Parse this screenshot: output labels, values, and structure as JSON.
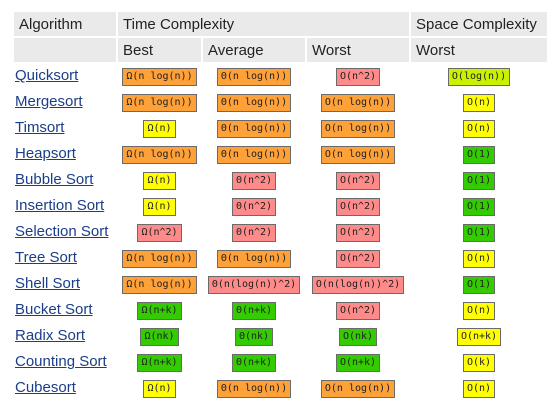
{
  "headers": {
    "algorithm": "Algorithm",
    "time_complexity": "Time Complexity",
    "space_complexity": "Space Complexity",
    "best": "Best",
    "average": "Average",
    "worst": "Worst",
    "space_worst": "Worst"
  },
  "colors": {
    "orange": "#fea138",
    "red": "#ff8a8a",
    "yellow": "#ffff00",
    "green": "#33cc00",
    "lime": "#cbf000",
    "link": "#1a3e88",
    "header_bg": "#eaeaea"
  },
  "rows": [
    {
      "name": "Quicksort",
      "best": {
        "text": "Ω(n log(n))",
        "color": "orange"
      },
      "average": {
        "text": "Θ(n log(n))",
        "color": "orange"
      },
      "worst": {
        "text": "O(n^2)",
        "color": "red"
      },
      "space": {
        "text": "O(log(n))",
        "color": "lime"
      }
    },
    {
      "name": "Mergesort",
      "best": {
        "text": "Ω(n log(n))",
        "color": "orange"
      },
      "average": {
        "text": "Θ(n log(n))",
        "color": "orange"
      },
      "worst": {
        "text": "O(n log(n))",
        "color": "orange"
      },
      "space": {
        "text": "O(n)",
        "color": "yellow"
      }
    },
    {
      "name": "Timsort",
      "best": {
        "text": "Ω(n)",
        "color": "yellow"
      },
      "average": {
        "text": "Θ(n log(n))",
        "color": "orange"
      },
      "worst": {
        "text": "O(n log(n))",
        "color": "orange"
      },
      "space": {
        "text": "O(n)",
        "color": "yellow"
      }
    },
    {
      "name": "Heapsort",
      "best": {
        "text": "Ω(n log(n))",
        "color": "orange"
      },
      "average": {
        "text": "Θ(n log(n))",
        "color": "orange"
      },
      "worst": {
        "text": "O(n log(n))",
        "color": "orange"
      },
      "space": {
        "text": "O(1)",
        "color": "green"
      }
    },
    {
      "name": "Bubble Sort",
      "best": {
        "text": "Ω(n)",
        "color": "yellow"
      },
      "average": {
        "text": "Θ(n^2)",
        "color": "red"
      },
      "worst": {
        "text": "O(n^2)",
        "color": "red"
      },
      "space": {
        "text": "O(1)",
        "color": "green"
      }
    },
    {
      "name": "Insertion Sort",
      "best": {
        "text": "Ω(n)",
        "color": "yellow"
      },
      "average": {
        "text": "Θ(n^2)",
        "color": "red"
      },
      "worst": {
        "text": "O(n^2)",
        "color": "red"
      },
      "space": {
        "text": "O(1)",
        "color": "green"
      }
    },
    {
      "name": "Selection Sort",
      "best": {
        "text": "Ω(n^2)",
        "color": "red"
      },
      "average": {
        "text": "Θ(n^2)",
        "color": "red"
      },
      "worst": {
        "text": "O(n^2)",
        "color": "red"
      },
      "space": {
        "text": "O(1)",
        "color": "green"
      }
    },
    {
      "name": "Tree Sort",
      "best": {
        "text": "Ω(n log(n))",
        "color": "orange"
      },
      "average": {
        "text": "Θ(n log(n))",
        "color": "orange"
      },
      "worst": {
        "text": "O(n^2)",
        "color": "red"
      },
      "space": {
        "text": "O(n)",
        "color": "yellow"
      }
    },
    {
      "name": "Shell Sort",
      "best": {
        "text": "Ω(n log(n))",
        "color": "orange"
      },
      "average": {
        "text": "Θ(n(log(n))^2)",
        "color": "red"
      },
      "worst": {
        "text": "O(n(log(n))^2)",
        "color": "red"
      },
      "space": {
        "text": "O(1)",
        "color": "green"
      }
    },
    {
      "name": "Bucket Sort",
      "best": {
        "text": "Ω(n+k)",
        "color": "green"
      },
      "average": {
        "text": "Θ(n+k)",
        "color": "green"
      },
      "worst": {
        "text": "O(n^2)",
        "color": "red"
      },
      "space": {
        "text": "O(n)",
        "color": "yellow"
      }
    },
    {
      "name": "Radix Sort",
      "best": {
        "text": "Ω(nk)",
        "color": "green"
      },
      "average": {
        "text": "Θ(nk)",
        "color": "green"
      },
      "worst": {
        "text": "O(nk)",
        "color": "green"
      },
      "space": {
        "text": "O(n+k)",
        "color": "yellow"
      }
    },
    {
      "name": "Counting Sort",
      "best": {
        "text": "Ω(n+k)",
        "color": "green"
      },
      "average": {
        "text": "Θ(n+k)",
        "color": "green"
      },
      "worst": {
        "text": "O(n+k)",
        "color": "green"
      },
      "space": {
        "text": "O(k)",
        "color": "yellow"
      }
    },
    {
      "name": "Cubesort",
      "best": {
        "text": "Ω(n)",
        "color": "yellow"
      },
      "average": {
        "text": "Θ(n log(n))",
        "color": "orange"
      },
      "worst": {
        "text": "O(n log(n))",
        "color": "orange"
      },
      "space": {
        "text": "O(n)",
        "color": "yellow"
      }
    }
  ]
}
